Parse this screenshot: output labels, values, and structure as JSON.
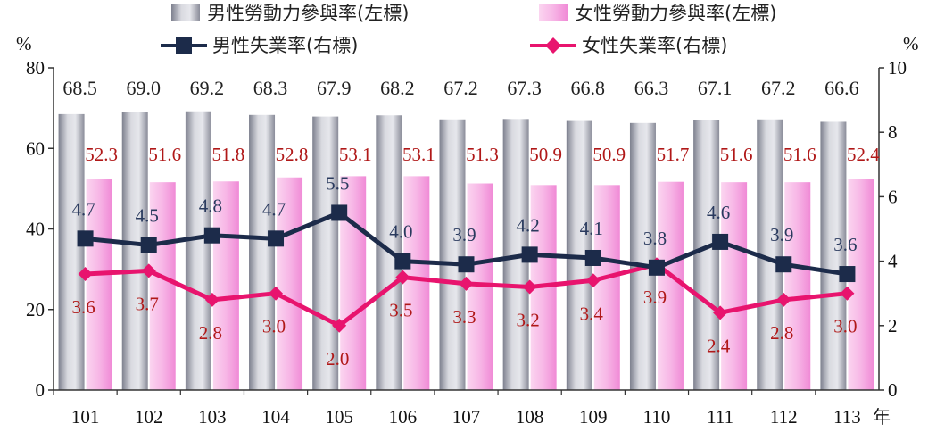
{
  "chart_data": {
    "type": "bar",
    "categories": [
      "101",
      "102",
      "103",
      "104",
      "105",
      "106",
      "107",
      "108",
      "109",
      "110",
      "111",
      "112",
      "113"
    ],
    "x_unit": "年",
    "y_left": {
      "unit": "%",
      "ylim": [
        0,
        80
      ],
      "ticks": [
        "0",
        "20",
        "40",
        "60",
        "80"
      ]
    },
    "y_right": {
      "unit": "%",
      "ylim": [
        0,
        10
      ],
      "ticks": [
        "0",
        "2",
        "4",
        "6",
        "8",
        "10"
      ]
    },
    "series": [
      {
        "name": "男性勞動力參與率(左標)",
        "kind": "bar",
        "axis": "left",
        "color": "#a6a8b4",
        "values": [
          68.5,
          69.0,
          69.2,
          68.3,
          67.9,
          68.2,
          67.2,
          67.3,
          66.8,
          66.3,
          67.1,
          67.2,
          66.6
        ],
        "labels": [
          "68.5",
          "69.0",
          "69.2",
          "68.3",
          "67.9",
          "68.2",
          "67.2",
          "67.3",
          "66.8",
          "66.3",
          "67.1",
          "67.2",
          "66.6"
        ]
      },
      {
        "name": "女性勞動力參與率(左標)",
        "kind": "bar",
        "axis": "left",
        "color": "#f7b6e6",
        "values": [
          52.3,
          51.6,
          51.8,
          52.8,
          53.1,
          53.1,
          51.3,
          50.9,
          50.9,
          51.7,
          51.6,
          51.6,
          52.4
        ],
        "labels": [
          "52.3",
          "51.6",
          "51.8",
          "52.8",
          "53.1",
          "53.1",
          "51.3",
          "50.9",
          "50.9",
          "51.7",
          "51.6",
          "51.6",
          "52.4"
        ]
      },
      {
        "name": "男性失業率(右標)",
        "kind": "line",
        "axis": "right",
        "color": "#1c2b4a",
        "values": [
          4.7,
          4.5,
          4.8,
          4.7,
          5.5,
          4.0,
          3.9,
          4.2,
          4.1,
          3.8,
          4.6,
          3.9,
          3.6
        ],
        "labels": [
          "4.7",
          "4.5",
          "4.8",
          "4.7",
          "5.5",
          "4.0",
          "3.9",
          "4.2",
          "4.1",
          "3.8",
          "4.6",
          "3.9",
          "3.6"
        ]
      },
      {
        "name": "女性失業率(右標)",
        "kind": "line",
        "axis": "right",
        "color": "#e8146e",
        "values": [
          3.6,
          3.7,
          2.8,
          3.0,
          2.0,
          3.5,
          3.3,
          3.2,
          3.4,
          3.9,
          2.4,
          2.8,
          3.0
        ],
        "labels": [
          "3.6",
          "3.7",
          "2.8",
          "3.0",
          "2.0",
          "3.5",
          "3.3",
          "3.2",
          "3.4",
          "3.9",
          "2.4",
          "2.8",
          "3.0"
        ]
      }
    ],
    "legend": "top"
  }
}
